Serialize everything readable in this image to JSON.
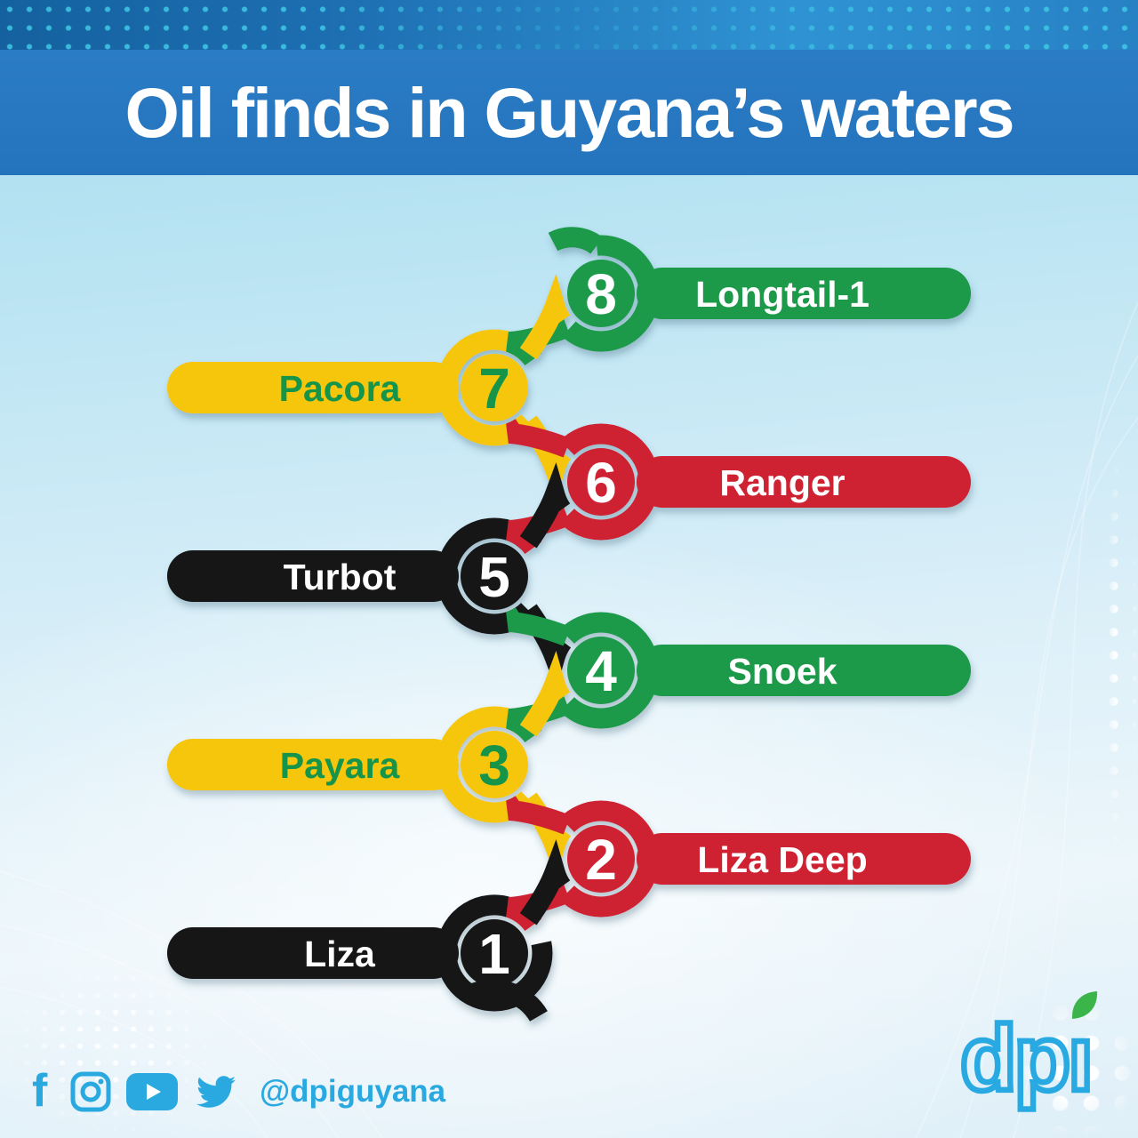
{
  "title": "Oil finds in Guyana’s waters",
  "items": [
    {
      "num": "1",
      "label": "Liza",
      "color": "black",
      "side": "left"
    },
    {
      "num": "2",
      "label": "Liza Deep",
      "color": "red",
      "side": "right"
    },
    {
      "num": "3",
      "label": "Payara",
      "color": "yellow",
      "side": "left"
    },
    {
      "num": "4",
      "label": "Snoek",
      "color": "green",
      "side": "right"
    },
    {
      "num": "5",
      "label": "Turbot",
      "color": "black",
      "side": "left"
    },
    {
      "num": "6",
      "label": "Ranger",
      "color": "red",
      "side": "right"
    },
    {
      "num": "7",
      "label": "Pacora",
      "color": "yellow",
      "side": "left"
    },
    {
      "num": "8",
      "label": "Longtail-1",
      "color": "green",
      "side": "right"
    }
  ],
  "colors": {
    "green": "#1a9a4a",
    "yellow": "#f6c60d",
    "red": "#ce2133",
    "black": "#141414",
    "text_on_yellow": "#16944a",
    "text_light": "#ffffff",
    "title_band": "#2878c2",
    "social_blue": "#2aa9e0",
    "logo_blue": "#29a9e1",
    "logo_leaf": "#3bb54a"
  },
  "footer": {
    "handle": "@dpiguyana",
    "icons": [
      "facebook",
      "instagram",
      "youtube",
      "twitter"
    ]
  },
  "logo": {
    "text": "dpı"
  }
}
